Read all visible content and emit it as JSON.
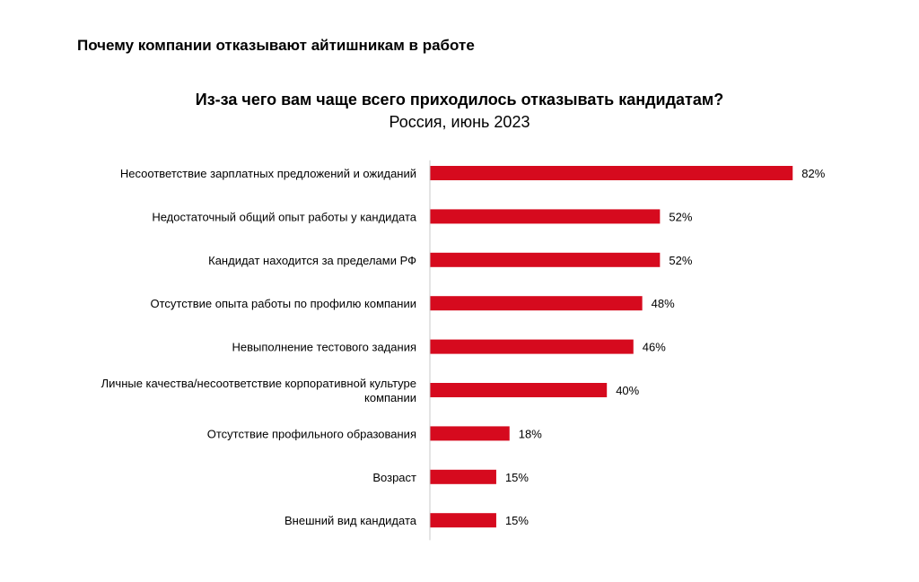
{
  "page_heading": "Почему компании отказывают айтишникам в работе",
  "chart_data": {
    "type": "bar",
    "orientation": "horizontal",
    "title": "Из-за чего вам чаще всего приходилось отказывать кандидатам?",
    "subtitle": "Россия, июнь 2023",
    "categories": [
      "Несоответствие зарплатных предложений и ожиданий",
      "Недостаточный общий опыт работы у кандидата",
      "Кандидат находится за пределами РФ",
      "Отсутствие опыта работы по профилю компании",
      "Невыполнение тестового задания",
      [
        "Личные качества/несоответствие корпоративной культуре",
        "компании"
      ],
      "Отсутствие профильного образования",
      "Возраст",
      "Внешний вид кандидата"
    ],
    "values": [
      82,
      52,
      52,
      48,
      46,
      40,
      18,
      15,
      15
    ],
    "value_labels": [
      "82%",
      "52%",
      "52%",
      "48%",
      "46%",
      "40%",
      "18%",
      "15%",
      "15%"
    ],
    "unit": "%",
    "xlim": [
      0,
      100
    ],
    "grid": false,
    "legend": "none",
    "bar_color": "#d60a1e",
    "axis_color": "#c8c8c8"
  }
}
